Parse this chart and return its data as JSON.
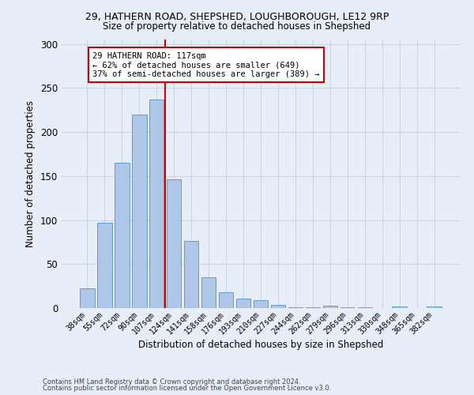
{
  "title1": "29, HATHERN ROAD, SHEPSHED, LOUGHBOROUGH, LE12 9RP",
  "title2": "Size of property relative to detached houses in Shepshed",
  "xlabel": "Distribution of detached houses by size in Shepshed",
  "ylabel": "Number of detached properties",
  "footer1": "Contains HM Land Registry data © Crown copyright and database right 2024.",
  "footer2": "Contains public sector information licensed under the Open Government Licence v3.0.",
  "annotation_line1": "29 HATHERN ROAD: 117sqm",
  "annotation_line2": "← 62% of detached houses are smaller (649)",
  "annotation_line3": "37% of semi-detached houses are larger (389) →",
  "bar_color": "#aec6e8",
  "bar_edge_color": "#5a9fd4",
  "grid_color": "#c8d4e8",
  "background_color": "#e8eef8",
  "vline_color": "#cc0000",
  "annotation_border_color": "#cc0000",
  "categories": [
    "38sqm",
    "55sqm",
    "72sqm",
    "90sqm",
    "107sqm",
    "124sqm",
    "141sqm",
    "158sqm",
    "176sqm",
    "193sqm",
    "210sqm",
    "227sqm",
    "244sqm",
    "262sqm",
    "279sqm",
    "296sqm",
    "313sqm",
    "330sqm",
    "348sqm",
    "365sqm",
    "382sqm"
  ],
  "values": [
    22,
    97,
    165,
    220,
    237,
    146,
    76,
    35,
    18,
    11,
    9,
    4,
    1,
    1,
    3,
    1,
    1,
    0,
    2,
    0,
    2
  ],
  "ylim": [
    0,
    305
  ],
  "yticks": [
    0,
    50,
    100,
    150,
    200,
    250,
    300
  ],
  "vline_x": 4.5
}
